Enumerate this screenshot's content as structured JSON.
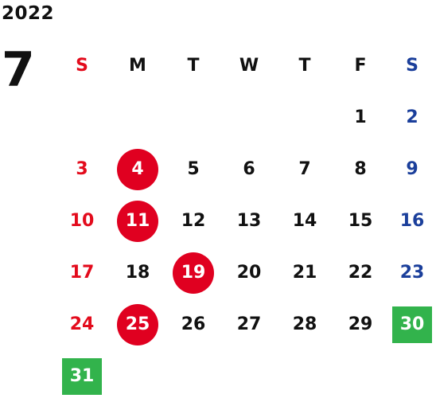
{
  "calendar": {
    "year": "2022",
    "month": "7",
    "weekdays": [
      "S",
      "M",
      "T",
      "W",
      "T",
      "F",
      "S"
    ],
    "colors": {
      "sunday": "#e30b1c",
      "saturday": "#1b3f9b",
      "highlight_red": "#e00020",
      "highlight_green": "#32b34c"
    },
    "days": [
      "1",
      "2",
      "3",
      "4",
      "5",
      "6",
      "7",
      "8",
      "9",
      "10",
      "11",
      "12",
      "13",
      "14",
      "15",
      "16",
      "17",
      "18",
      "19",
      "20",
      "21",
      "22",
      "23",
      "24",
      "25",
      "26",
      "27",
      "28",
      "29",
      "30",
      "31"
    ]
  }
}
